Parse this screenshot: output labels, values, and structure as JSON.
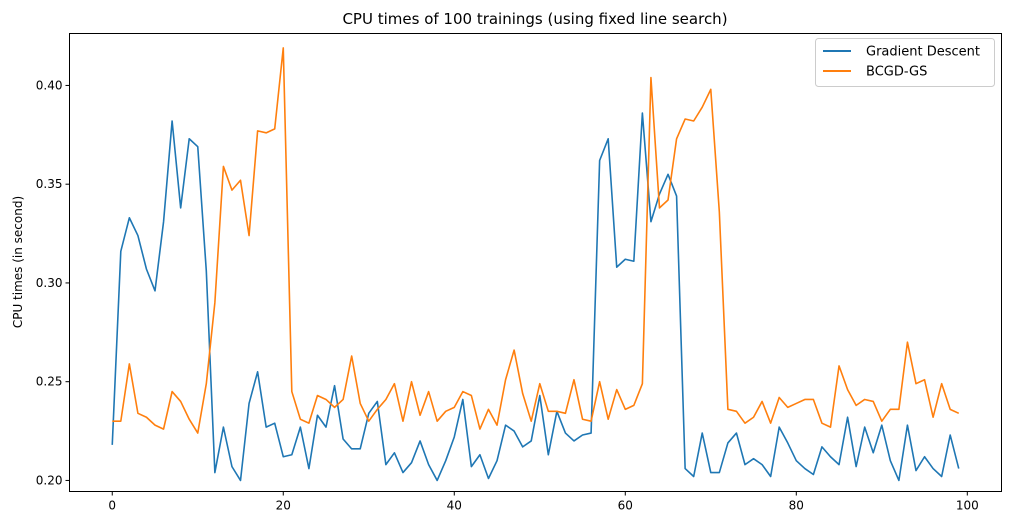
{
  "chart_data": {
    "type": "line",
    "title": "CPU times of 100 trainings (using fixed line search)",
    "xlabel": "",
    "ylabel": "CPU times (in second)",
    "xlim": [
      -5,
      104
    ],
    "ylim": [
      0.1944,
      0.4263
    ],
    "x_ticks": [
      0,
      20,
      40,
      60,
      80,
      100
    ],
    "x_tick_labels": [
      "0",
      "20",
      "40",
      "60",
      "80",
      "100"
    ],
    "y_ticks": [
      0.2,
      0.25,
      0.3,
      0.35,
      0.4
    ],
    "y_tick_labels": [
      "0.20",
      "0.25",
      "0.30",
      "0.35",
      "0.40"
    ],
    "grid": false,
    "legend_position": "top-right",
    "series": [
      {
        "name": "Gradient Descent",
        "color": "#1f77b4",
        "values": [
          0.218,
          0.316,
          0.333,
          0.324,
          0.307,
          0.296,
          0.331,
          0.382,
          0.338,
          0.373,
          0.369,
          0.306,
          0.204,
          0.227,
          0.207,
          0.2,
          0.239,
          0.255,
          0.227,
          0.229,
          0.212,
          0.213,
          0.227,
          0.206,
          0.233,
          0.227,
          0.248,
          0.221,
          0.216,
          0.216,
          0.234,
          0.24,
          0.208,
          0.214,
          0.204,
          0.209,
          0.22,
          0.208,
          0.2,
          0.21,
          0.222,
          0.241,
          0.207,
          0.213,
          0.201,
          0.21,
          0.228,
          0.225,
          0.217,
          0.22,
          0.243,
          0.213,
          0.235,
          0.224,
          0.22,
          0.223,
          0.224,
          0.362,
          0.373,
          0.308,
          0.312,
          0.311,
          0.386,
          0.331,
          0.345,
          0.355,
          0.344,
          0.206,
          0.202,
          0.224,
          0.204,
          0.204,
          0.219,
          0.224,
          0.208,
          0.211,
          0.208,
          0.202,
          0.227,
          0.219,
          0.21,
          0.206,
          0.203,
          0.217,
          0.212,
          0.208,
          0.232,
          0.207,
          0.227,
          0.214,
          0.228,
          0.21,
          0.2,
          0.228,
          0.205,
          0.212,
          0.206,
          0.202,
          0.223,
          0.206
        ]
      },
      {
        "name": "BCGD-GS",
        "color": "#ff7f0e",
        "values": [
          0.23,
          0.23,
          0.259,
          0.234,
          0.232,
          0.228,
          0.226,
          0.245,
          0.24,
          0.231,
          0.224,
          0.249,
          0.29,
          0.359,
          0.347,
          0.352,
          0.324,
          0.377,
          0.376,
          0.378,
          0.419,
          0.245,
          0.231,
          0.229,
          0.243,
          0.241,
          0.237,
          0.241,
          0.263,
          0.239,
          0.23,
          0.236,
          0.241,
          0.249,
          0.23,
          0.25,
          0.233,
          0.245,
          0.23,
          0.235,
          0.237,
          0.245,
          0.243,
          0.226,
          0.236,
          0.228,
          0.251,
          0.266,
          0.244,
          0.23,
          0.249,
          0.235,
          0.235,
          0.234,
          0.251,
          0.231,
          0.23,
          0.25,
          0.231,
          0.246,
          0.236,
          0.238,
          0.249,
          0.404,
          0.338,
          0.342,
          0.373,
          0.383,
          0.382,
          0.389,
          0.398,
          0.336,
          0.236,
          0.235,
          0.229,
          0.232,
          0.24,
          0.229,
          0.242,
          0.237,
          0.239,
          0.241,
          0.241,
          0.229,
          0.227,
          0.258,
          0.246,
          0.238,
          0.241,
          0.24,
          0.23,
          0.236,
          0.236,
          0.27,
          0.249,
          0.251,
          0.232,
          0.249,
          0.236,
          0.234
        ]
      }
    ]
  }
}
